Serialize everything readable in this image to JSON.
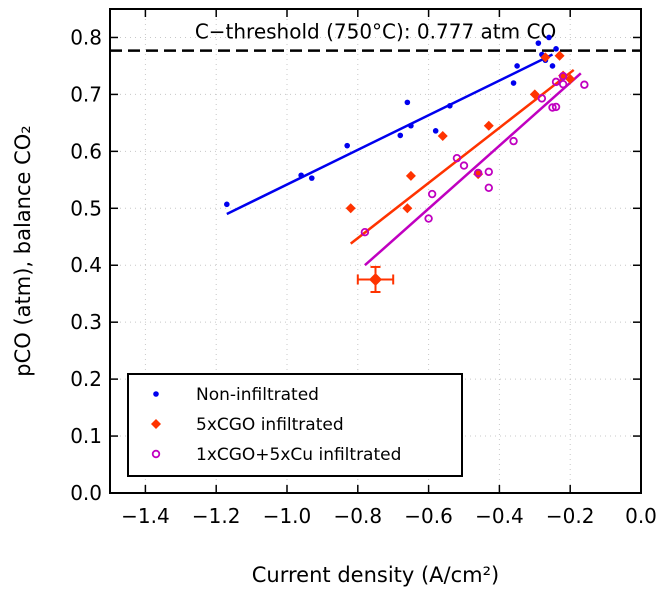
{
  "chart_data": {
    "type": "scatter",
    "xlabel": "Current density (A/cm²)",
    "ylabel": "pCO (atm), balance CO₂",
    "xlim": [
      -1.5,
      0.0
    ],
    "ylim": [
      0.0,
      0.85
    ],
    "xticks": [
      -1.4,
      -1.2,
      -1.0,
      -0.8,
      -0.6,
      -0.4,
      -0.2,
      0.0
    ],
    "xtick_labels": [
      "−1.4",
      "−1.2",
      "−1.0",
      "−0.8",
      "−0.6",
      "−0.4",
      "−0.2",
      "0.0"
    ],
    "yticks": [
      0.0,
      0.1,
      0.2,
      0.3,
      0.4,
      0.5,
      0.6,
      0.7,
      0.8
    ],
    "ytick_labels": [
      "0.0",
      "0.1",
      "0.2",
      "0.3",
      "0.4",
      "0.5",
      "0.6",
      "0.7",
      "0.8"
    ],
    "grid": true,
    "legend_position": "bottom-left",
    "threshold": {
      "y": 0.777,
      "label": "C−threshold (750°C): 0.777 atm CO"
    },
    "series": [
      {
        "name": "Non-infiltrated",
        "color": "#0000ee",
        "marker": "dot",
        "points": [
          [
            -1.17,
            0.507
          ],
          [
            -0.96,
            0.558
          ],
          [
            -0.93,
            0.553
          ],
          [
            -0.83,
            0.61
          ],
          [
            -0.68,
            0.628
          ],
          [
            -0.66,
            0.686
          ],
          [
            -0.65,
            0.645
          ],
          [
            -0.58,
            0.636
          ],
          [
            -0.54,
            0.68
          ],
          [
            -0.36,
            0.72
          ],
          [
            -0.35,
            0.75
          ],
          [
            -0.29,
            0.79
          ],
          [
            -0.28,
            0.77
          ],
          [
            -0.27,
            0.76
          ],
          [
            -0.26,
            0.8
          ],
          [
            -0.25,
            0.75
          ],
          [
            -0.24,
            0.78
          ]
        ],
        "fit": [
          [
            -1.17,
            0.49
          ],
          [
            -0.25,
            0.77
          ]
        ]
      },
      {
        "name": "5xCGO infiltrated",
        "color": "#ff3300",
        "marker": "diamond",
        "points": [
          [
            -0.82,
            0.5
          ],
          [
            -0.66,
            0.5
          ],
          [
            -0.65,
            0.557
          ],
          [
            -0.56,
            0.627
          ],
          [
            -0.46,
            0.56
          ],
          [
            -0.43,
            0.645
          ],
          [
            -0.3,
            0.7
          ],
          [
            -0.27,
            0.765
          ],
          [
            -0.23,
            0.768
          ],
          [
            -0.22,
            0.733
          ],
          [
            -0.2,
            0.727
          ]
        ],
        "error_point": {
          "x": -0.75,
          "y": 0.375,
          "xerr": 0.05,
          "yerr": 0.022
        },
        "fit": [
          [
            -0.82,
            0.438
          ],
          [
            -0.19,
            0.743
          ]
        ]
      },
      {
        "name": "1xCGO+5xCu infiltrated",
        "color": "#c000c0",
        "marker": "circle-open",
        "points": [
          [
            -0.78,
            0.458
          ],
          [
            -0.6,
            0.482
          ],
          [
            -0.59,
            0.525
          ],
          [
            -0.52,
            0.588
          ],
          [
            -0.5,
            0.575
          ],
          [
            -0.46,
            0.562
          ],
          [
            -0.43,
            0.564
          ],
          [
            -0.43,
            0.536
          ],
          [
            -0.36,
            0.618
          ],
          [
            -0.28,
            0.693
          ],
          [
            -0.25,
            0.677
          ],
          [
            -0.24,
            0.678
          ],
          [
            -0.24,
            0.722
          ],
          [
            -0.22,
            0.718
          ],
          [
            -0.22,
            0.732
          ],
          [
            -0.16,
            0.717
          ]
        ],
        "fit": [
          [
            -0.78,
            0.4
          ],
          [
            -0.17,
            0.737
          ]
        ]
      }
    ]
  }
}
